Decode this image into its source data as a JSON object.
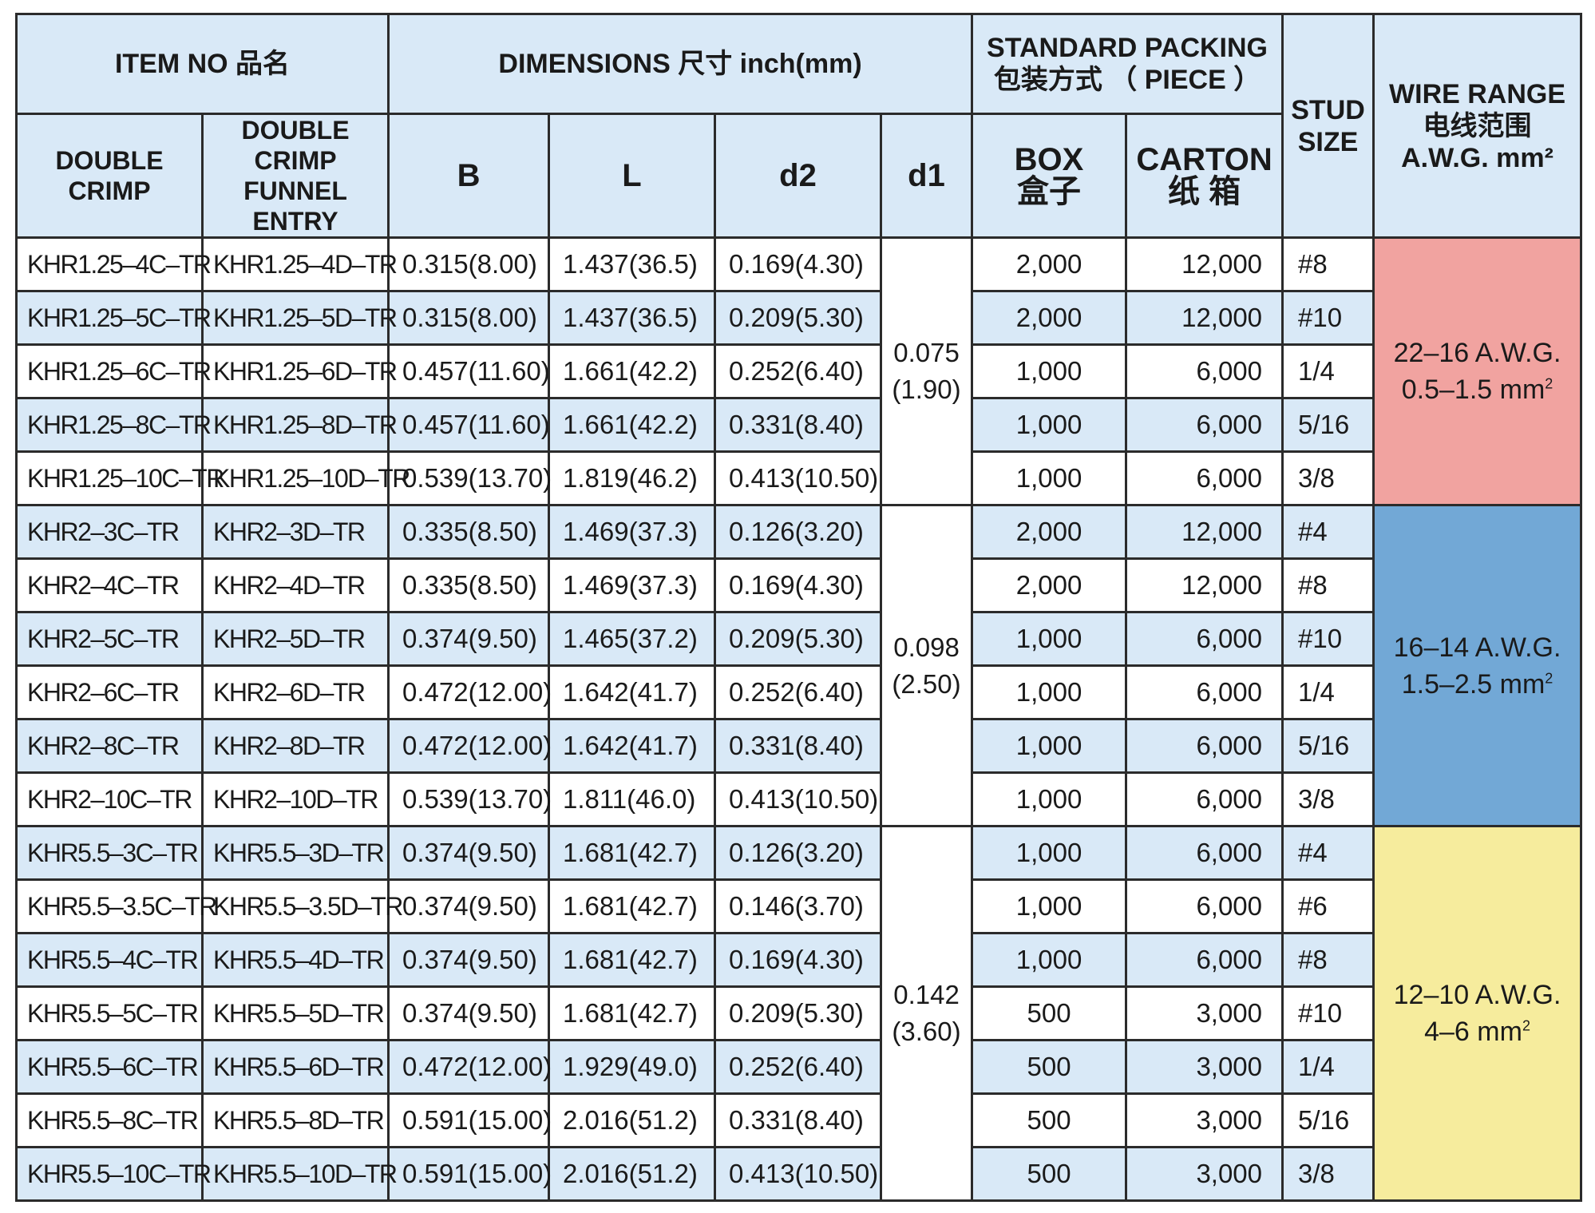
{
  "header": {
    "item_no": "ITEM NO 品名",
    "dimensions": "DIMENSIONS 尺寸  inch(mm)",
    "standard_packing_line1": "STANDARD PACKING",
    "standard_packing_line2": "包装方式 （ PIECE ）",
    "stud_size_line1": "STUD",
    "stud_size_line2": "SIZE",
    "wire_range_line1": "WIRE RANGE",
    "wire_range_line2": "电线范围",
    "wire_range_line3": "A.W.G.  mm²",
    "double_crimp_line1": "DOUBLE",
    "double_crimp_line2": "CRIMP",
    "funnel_line1": "DOUBLE CRIMP",
    "funnel_line2": "FUNNEL ENTRY",
    "b": "B",
    "l": "L",
    "d2": "d2",
    "d1": "d1",
    "box_line1": "BOX",
    "box_line2": "盒子",
    "carton_line1": "CARTON",
    "carton_line2": "纸 箱"
  },
  "groups": [
    {
      "d1_inch": "0.075",
      "d1_mm": "(1.90)",
      "wire_awg": "22–16  A.W.G.",
      "wire_mm": "0.5–1.5   mm",
      "wire_color": "#f1a3a0",
      "rows": [
        {
          "dc": "KHR1.25–4C–TR",
          "fe": "KHR1.25–4D–TR",
          "b": "0.315(8.00)",
          "l": "1.437(36.5)",
          "d2": "0.169(4.30)",
          "box": "2,000",
          "carton": "12,000",
          "stud": "#8"
        },
        {
          "dc": "KHR1.25–5C–TR",
          "fe": "KHR1.25–5D–TR",
          "b": "0.315(8.00)",
          "l": "1.437(36.5)",
          "d2": "0.209(5.30)",
          "box": "2,000",
          "carton": "12,000",
          "stud": "#10"
        },
        {
          "dc": "KHR1.25–6C–TR",
          "fe": "KHR1.25–6D–TR",
          "b": "0.457(11.60)",
          "l": "1.661(42.2)",
          "d2": "0.252(6.40)",
          "box": "1,000",
          "carton": "6,000",
          "stud": "1/4"
        },
        {
          "dc": "KHR1.25–8C–TR",
          "fe": "KHR1.25–8D–TR",
          "b": "0.457(11.60)",
          "l": "1.661(42.2)",
          "d2": "0.331(8.40)",
          "box": "1,000",
          "carton": "6,000",
          "stud": "5/16"
        },
        {
          "dc": "KHR1.25–10C–TR",
          "fe": "KHR1.25–10D–TR",
          "b": "0.539(13.70)",
          "l": "1.819(46.2)",
          "d2": "0.413(10.50)",
          "box": "1,000",
          "carton": "6,000",
          "stud": "3/8"
        }
      ]
    },
    {
      "d1_inch": "0.098",
      "d1_mm": "(2.50)",
      "wire_awg": "16–14  A.W.G.",
      "wire_mm": "1.5–2.5   mm",
      "wire_color": "#72a8d6",
      "rows": [
        {
          "dc": "KHR2–3C–TR",
          "fe": "KHR2–3D–TR",
          "b": "0.335(8.50)",
          "l": "1.469(37.3)",
          "d2": "0.126(3.20)",
          "box": "2,000",
          "carton": "12,000",
          "stud": "#4"
        },
        {
          "dc": "KHR2–4C–TR",
          "fe": "KHR2–4D–TR",
          "b": "0.335(8.50)",
          "l": "1.469(37.3)",
          "d2": "0.169(4.30)",
          "box": "2,000",
          "carton": "12,000",
          "stud": "#8"
        },
        {
          "dc": "KHR2–5C–TR",
          "fe": "KHR2–5D–TR",
          "b": "0.374(9.50)",
          "l": "1.465(37.2)",
          "d2": "0.209(5.30)",
          "box": "1,000",
          "carton": "6,000",
          "stud": "#10"
        },
        {
          "dc": "KHR2–6C–TR",
          "fe": "KHR2–6D–TR",
          "b": "0.472(12.00)",
          "l": "1.642(41.7)",
          "d2": "0.252(6.40)",
          "box": "1,000",
          "carton": "6,000",
          "stud": "1/4"
        },
        {
          "dc": "KHR2–8C–TR",
          "fe": "KHR2–8D–TR",
          "b": "0.472(12.00)",
          "l": "1.642(41.7)",
          "d2": "0.331(8.40)",
          "box": "1,000",
          "carton": "6,000",
          "stud": "5/16"
        },
        {
          "dc": "KHR2–10C–TR",
          "fe": "KHR2–10D–TR",
          "b": "0.539(13.70)",
          "l": "1.811(46.0)",
          "d2": "0.413(10.50)",
          "box": "1,000",
          "carton": "6,000",
          "stud": "3/8"
        }
      ]
    },
    {
      "d1_inch": "0.142",
      "d1_mm": "(3.60)",
      "wire_awg": "12–10  A.W.G.",
      "wire_mm": "4–6   mm",
      "wire_color": "#f6ec9d",
      "rows": [
        {
          "dc": "KHR5.5–3C–TR",
          "fe": "KHR5.5–3D–TR",
          "b": "0.374(9.50)",
          "l": "1.681(42.7)",
          "d2": "0.126(3.20)",
          "box": "1,000",
          "carton": "6,000",
          "stud": "#4"
        },
        {
          "dc": "KHR5.5–3.5C–TR",
          "fe": "KHR5.5–3.5D–TR",
          "b": "0.374(9.50)",
          "l": "1.681(42.7)",
          "d2": "0.146(3.70)",
          "box": "1,000",
          "carton": "6,000",
          "stud": "#6"
        },
        {
          "dc": "KHR5.5–4C–TR",
          "fe": "KHR5.5–4D–TR",
          "b": "0.374(9.50)",
          "l": "1.681(42.7)",
          "d2": "0.169(4.30)",
          "box": "1,000",
          "carton": "6,000",
          "stud": "#8"
        },
        {
          "dc": "KHR5.5–5C–TR",
          "fe": "KHR5.5–5D–TR",
          "b": "0.374(9.50)",
          "l": "1.681(42.7)",
          "d2": "0.209(5.30)",
          "box": "500",
          "carton": "3,000",
          "stud": "#10"
        },
        {
          "dc": "KHR5.5–6C–TR",
          "fe": "KHR5.5–6D–TR",
          "b": "0.472(12.00)",
          "l": "1.929(49.0)",
          "d2": "0.252(6.40)",
          "box": "500",
          "carton": "3,000",
          "stud": "1/4"
        },
        {
          "dc": "KHR5.5–8C–TR",
          "fe": "KHR5.5–8D–TR",
          "b": "0.591(15.00)",
          "l": "2.016(51.2)",
          "d2": "0.331(8.40)",
          "box": "500",
          "carton": "3,000",
          "stud": "5/16"
        },
        {
          "dc": "KHR5.5–10C–TR",
          "fe": "KHR5.5–10D–TR",
          "b": "0.591(15.00)",
          "l": "2.016(51.2)",
          "d2": "0.413(10.50)",
          "box": "500",
          "carton": "3,000",
          "stud": "3/8"
        }
      ]
    }
  ]
}
